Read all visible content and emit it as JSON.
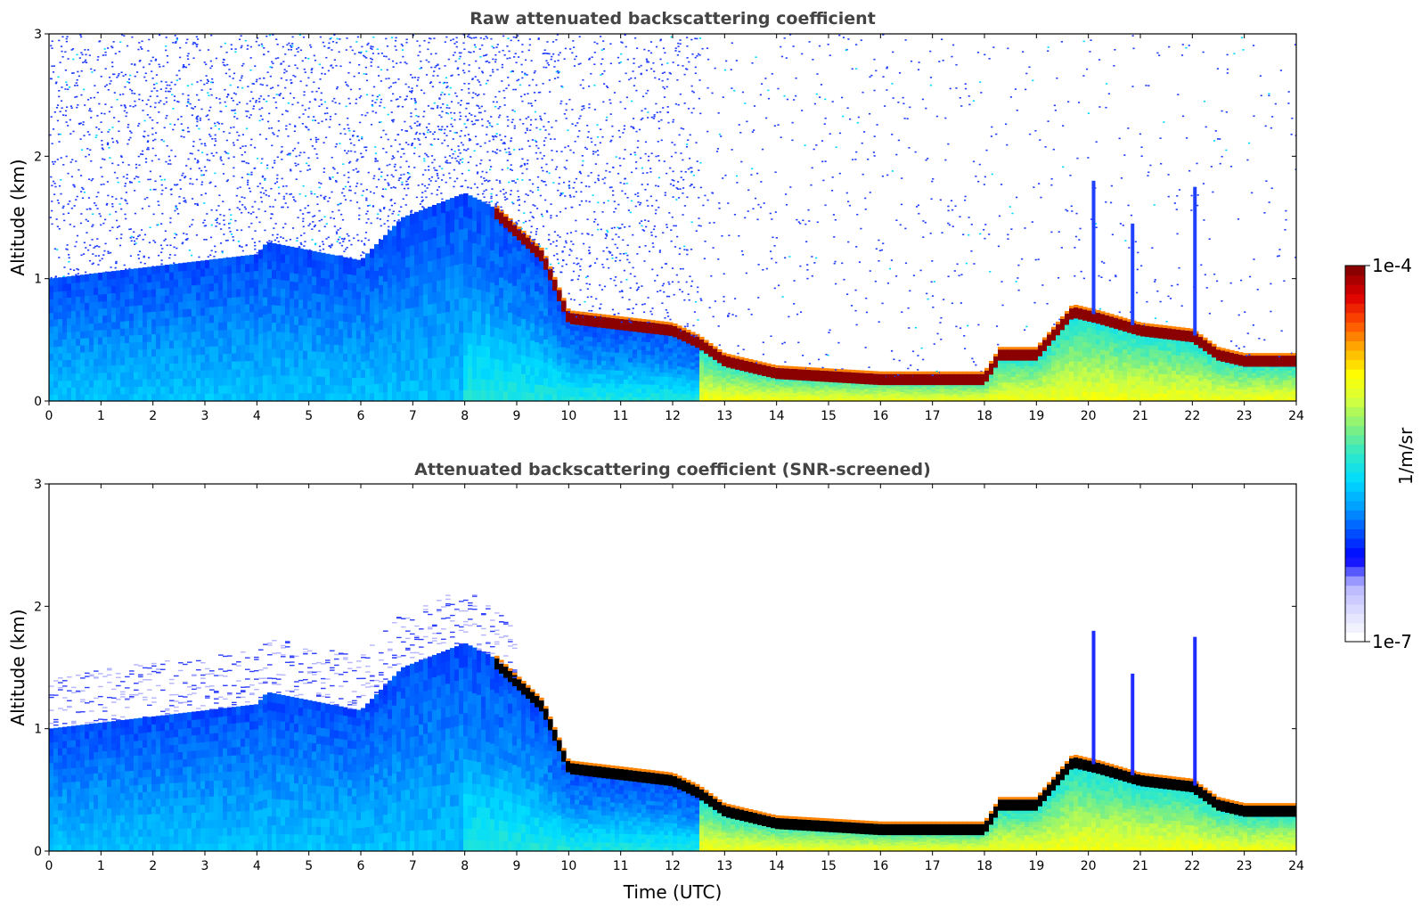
{
  "colors": {
    "colormap": [
      "#ffffff",
      "#dcdcff",
      "#b4b4ff",
      "#0000ff",
      "#0050ff",
      "#00a0ff",
      "#00dcff",
      "#30e8c8",
      "#80f080",
      "#d0ff40",
      "#ffff00",
      "#ffb000",
      "#ff5000",
      "#e00000",
      "#8b0000"
    ],
    "background": "#ffffff",
    "screened_core": "#000000",
    "title_color": "#444444"
  },
  "colorbar": {
    "label": "1/m/sr",
    "max_label": "1e-4",
    "min_label": "1e-7",
    "scale": "log"
  },
  "chart_data": [
    {
      "type": "heatmap",
      "title": "Raw attenuated backscattering coefficient",
      "xlabel": "",
      "ylabel": "Altitude (km)",
      "xlim": [
        0,
        24
      ],
      "ylim": [
        0,
        3
      ],
      "x_ticks": [
        0,
        1,
        2,
        3,
        4,
        5,
        6,
        7,
        8,
        9,
        10,
        11,
        12,
        13,
        14,
        15,
        16,
        17,
        18,
        19,
        20,
        21,
        22,
        23,
        24
      ],
      "y_ticks": [
        0,
        1,
        2,
        3
      ],
      "layer_top_km": {
        "time_h": [
          0,
          2,
          4,
          4.2,
          6,
          6.8,
          8,
          8.5,
          9,
          9.5,
          10,
          11,
          12,
          12.5,
          13,
          14,
          16,
          18,
          18.3,
          19,
          19.7,
          20.2,
          21,
          22,
          22.5,
          23,
          24
        ],
        "alt_km": [
          1.0,
          1.1,
          1.2,
          1.3,
          1.15,
          1.5,
          1.7,
          1.6,
          1.4,
          1.2,
          0.7,
          0.65,
          0.6,
          0.5,
          0.35,
          0.25,
          0.2,
          0.2,
          0.4,
          0.4,
          0.75,
          0.7,
          0.6,
          0.55,
          0.4,
          0.35,
          0.35
        ]
      },
      "plumes": [
        {
          "time_h": 20.1,
          "top_km": 1.8
        },
        {
          "time_h": 20.85,
          "top_km": 1.45
        },
        {
          "time_h": 22.05,
          "top_km": 1.75
        }
      ],
      "colorscale": "log 1e-7 to 1e-4 1/m/sr",
      "grid": false
    },
    {
      "type": "heatmap",
      "title": "Attenuated backscattering coefficient (SNR-screened)",
      "xlabel": "Time (UTC)",
      "ylabel": "Altitude (km)",
      "xlim": [
        0,
        24
      ],
      "ylim": [
        0,
        3
      ],
      "x_ticks": [
        0,
        1,
        2,
        3,
        4,
        5,
        6,
        7,
        8,
        9,
        10,
        11,
        12,
        13,
        14,
        15,
        16,
        17,
        18,
        19,
        20,
        21,
        22,
        23,
        24
      ],
      "y_ticks": [
        0,
        1,
        2,
        3
      ],
      "colorscale": "log 1e-7 to 1e-4 1/m/sr",
      "screened": true,
      "grid": false
    }
  ]
}
